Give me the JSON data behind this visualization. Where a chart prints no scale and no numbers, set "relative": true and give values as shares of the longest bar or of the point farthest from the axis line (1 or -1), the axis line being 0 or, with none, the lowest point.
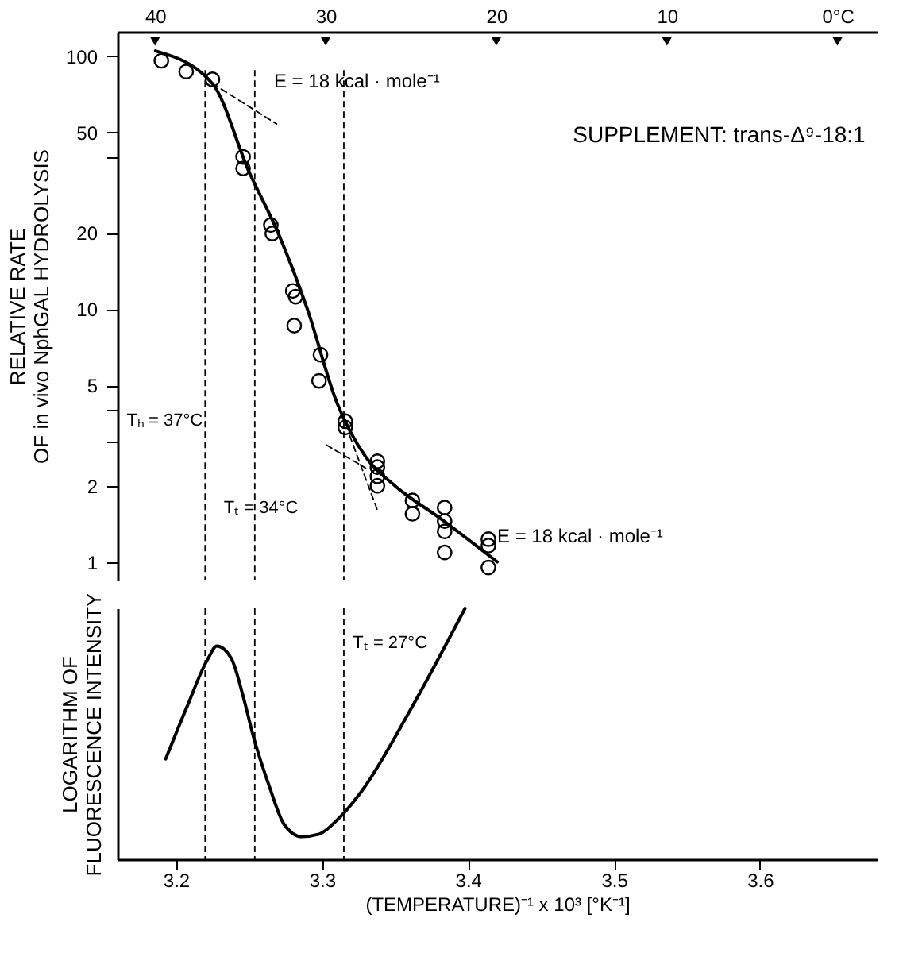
{
  "chart_data": [
    {
      "type": "scatter",
      "ylabel": "RELATIVE RATE\nOF in vivo NphGAL HYDROLYSIS",
      "log": true,
      "grid": false,
      "tick_labels": "y",
      "xlim": [
        3.16,
        3.68
      ],
      "ylim": [
        0.85,
        125
      ],
      "yticks": [
        1,
        2,
        {
          "value": 3,
          "label": null
        },
        {
          "value": 4,
          "label": null
        },
        5,
        10,
        20,
        {
          "value": 40,
          "label": null
        },
        50,
        100
      ],
      "x2lim": [
        42.2,
        -2.3
      ],
      "x2ticks": [
        40,
        30,
        20,
        10,
        {
          "value": 0,
          "label": "0°C"
        }
      ],
      "series": [
        {
          "type": "scatter",
          "marker": "circle",
          "color": "#000000",
          "x": [
            3.19,
            3.207,
            3.225,
            3.246,
            3.246,
            3.265,
            3.266,
            3.28,
            3.282,
            3.281,
            3.299,
            3.298,
            3.316,
            3.316,
            3.338,
            3.338,
            3.338,
            3.338,
            3.362,
            3.362,
            3.384,
            3.384,
            3.384,
            3.384,
            3.414,
            3.414,
            3.414
          ],
          "values": [
            96,
            87,
            81,
            40,
            36,
            21.5,
            19.9,
            11.8,
            11.2,
            8.6,
            6.6,
            5.2,
            3.6,
            3.4,
            2.5,
            2.37,
            2.18,
            2.0,
            1.75,
            1.55,
            1.64,
            1.45,
            1.32,
            1.09,
            1.23,
            1.16,
            0.95
          ]
        },
        {
          "type": "line",
          "color": "#000000",
          "line_style": "solid",
          "x": [
            3.186,
            3.225,
            3.25,
            3.27,
            3.29,
            3.31,
            3.33,
            3.35,
            3.38,
            3.42
          ],
          "values": [
            105,
            78,
            35,
            20,
            10,
            4.3,
            2.6,
            2.0,
            1.5,
            1.0
          ]
        },
        {
          "type": "line",
          "color": "#000000",
          "line_style": "dashed",
          "x": [
            3.225,
            3.269
          ],
          "values": [
            78,
            54
          ]
        },
        {
          "type": "line",
          "color": "#000000",
          "line_style": "dashed",
          "x": [
            3.303,
            3.33
          ],
          "values": [
            2.9,
            2.35
          ]
        },
        {
          "type": "line",
          "color": "#000000",
          "line_style": "dashed",
          "x": [
            3.319,
            3.338
          ],
          "values": [
            3.16,
            1.6
          ]
        }
      ],
      "ref_lines": [
        {
          "axis": "x",
          "value": 3.22
        },
        {
          "axis": "x",
          "value": 3.254
        },
        {
          "axis": "x",
          "value": 3.315
        }
      ],
      "annotations": [
        "E = 18  kcal · mole⁻¹",
        "SUPPLEMENT: trans-Δ⁹-18:1",
        "E = 18  kcal · mole⁻¹",
        "Tₕ = 37°C",
        "Tₜ = 34°C"
      ]
    },
    {
      "type": "line",
      "ylabel": "LOGARITHM OF\nFLUORESCENCE INTENSITY",
      "xlabel": "(TEMPERATURE)⁻¹ x 10³  [°K⁻¹]",
      "relative": true,
      "grid": false,
      "tick_labels": "x",
      "xlim": [
        3.16,
        3.68
      ],
      "xticks": [
        3.2,
        3.3,
        3.4,
        3.5,
        3.6
      ],
      "series": [
        {
          "color": "#000000",
          "x": [
            3.193,
            3.207,
            3.222,
            3.228,
            3.238,
            3.246,
            3.253,
            3.264,
            3.274,
            3.286,
            3.298,
            3.311,
            3.327,
            3.361,
            3.398
          ],
          "values": [
            0.4,
            0.6,
            0.8,
            0.85,
            0.8,
            0.65,
            0.49,
            0.29,
            0.14,
            0.09,
            0.1,
            0.16,
            0.27,
            0.6,
            1.0
          ]
        }
      ],
      "ref_lines": [
        {
          "axis": "x",
          "value": 3.22
        },
        {
          "axis": "x",
          "value": 3.254
        },
        {
          "axis": "x",
          "value": 3.315
        }
      ],
      "annotations": [
        "Tₜ = 27°C"
      ]
    }
  ]
}
